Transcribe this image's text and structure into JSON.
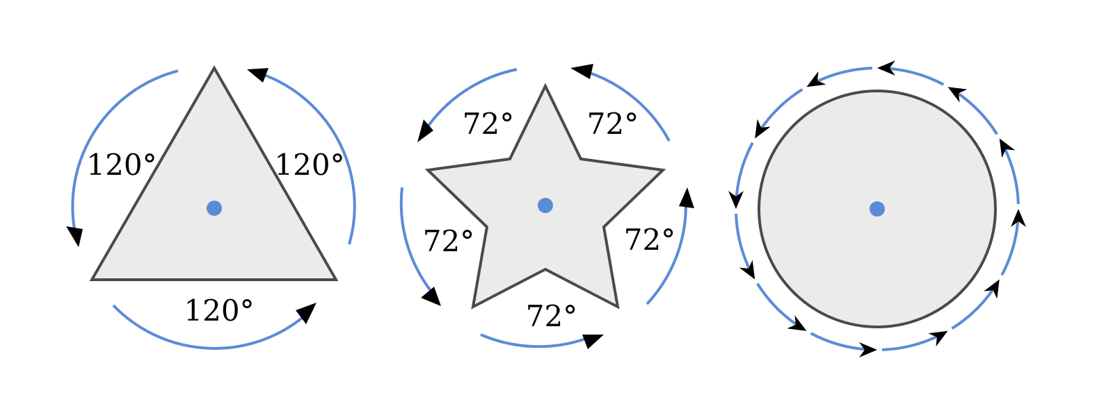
{
  "colors": {
    "shape_fill": "#ebebeb",
    "shape_stroke": "#4a4a4a",
    "arc": "#5b8bd6",
    "center_dot": "#5b8bd6",
    "arrowhead": "#000000"
  },
  "triangle": {
    "rotation_angle_deg": 120,
    "labels": [
      "120°",
      "120°",
      "120°"
    ]
  },
  "star": {
    "rotation_angle_deg": 72,
    "labels": [
      "72°",
      "72°",
      "72°",
      "72°",
      "72°"
    ]
  },
  "circle": {
    "arc_segments": 12
  }
}
